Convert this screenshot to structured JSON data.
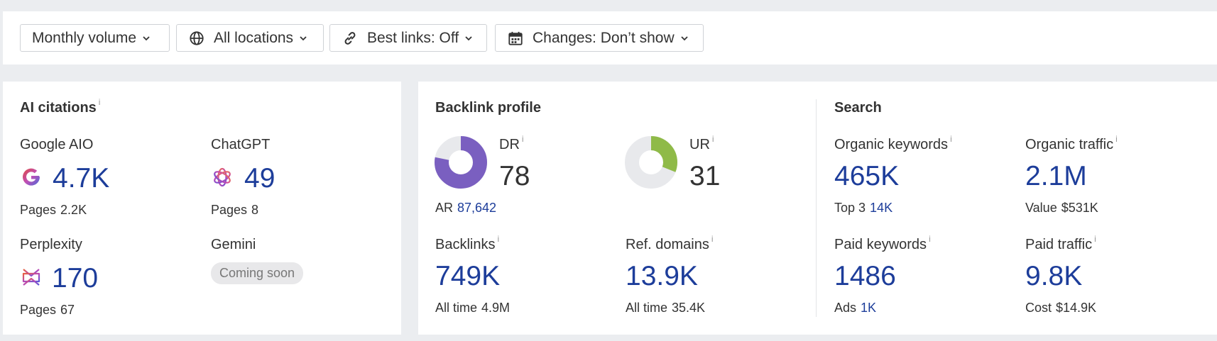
{
  "toolbar": {
    "volume": "Monthly volume",
    "locations": "All locations",
    "best_links": "Best links: Off",
    "changes": "Changes: Don’t show"
  },
  "ai": {
    "title": "AI citations",
    "google": {
      "name": "Google AIO",
      "value": "4.7K",
      "pages_label": "Pages",
      "pages": "2.2K"
    },
    "chatgpt": {
      "name": "ChatGPT",
      "value": "49",
      "pages_label": "Pages",
      "pages": "8"
    },
    "perplexity": {
      "name": "Perplexity",
      "value": "170",
      "pages_label": "Pages",
      "pages": "67"
    },
    "gemini": {
      "name": "Gemini",
      "badge": "Coming soon"
    }
  },
  "backlink": {
    "title": "Backlink profile",
    "dr": {
      "label": "DR",
      "value": "78",
      "fraction": 0.78,
      "color": "#7a5fc0"
    },
    "ur": {
      "label": "UR",
      "value": "31",
      "fraction": 0.31,
      "color": "#8fba48"
    },
    "ar": {
      "label": "AR",
      "value": "87,642"
    },
    "backlinks": {
      "label": "Backlinks",
      "value": "749K",
      "sub_label": "All time",
      "sub_value": "4.9M"
    },
    "refdomains": {
      "label": "Ref. domains",
      "value": "13.9K",
      "sub_label": "All time",
      "sub_value": "35.4K"
    }
  },
  "search": {
    "title": "Search",
    "organic_keywords": {
      "label": "Organic keywords",
      "value": "465K",
      "sub_label": "Top 3",
      "sub_value": "14K"
    },
    "organic_traffic": {
      "label": "Organic traffic",
      "value": "2.1M",
      "sub_label": "Value",
      "sub_value": "$531K"
    },
    "paid_keywords": {
      "label": "Paid keywords",
      "value": "1486",
      "sub_label": "Ads",
      "sub_value": "1K"
    },
    "paid_traffic": {
      "label": "Paid traffic",
      "value": "9.8K",
      "sub_label": "Cost",
      "sub_value": "$14.9K"
    }
  },
  "info_glyph": "i"
}
